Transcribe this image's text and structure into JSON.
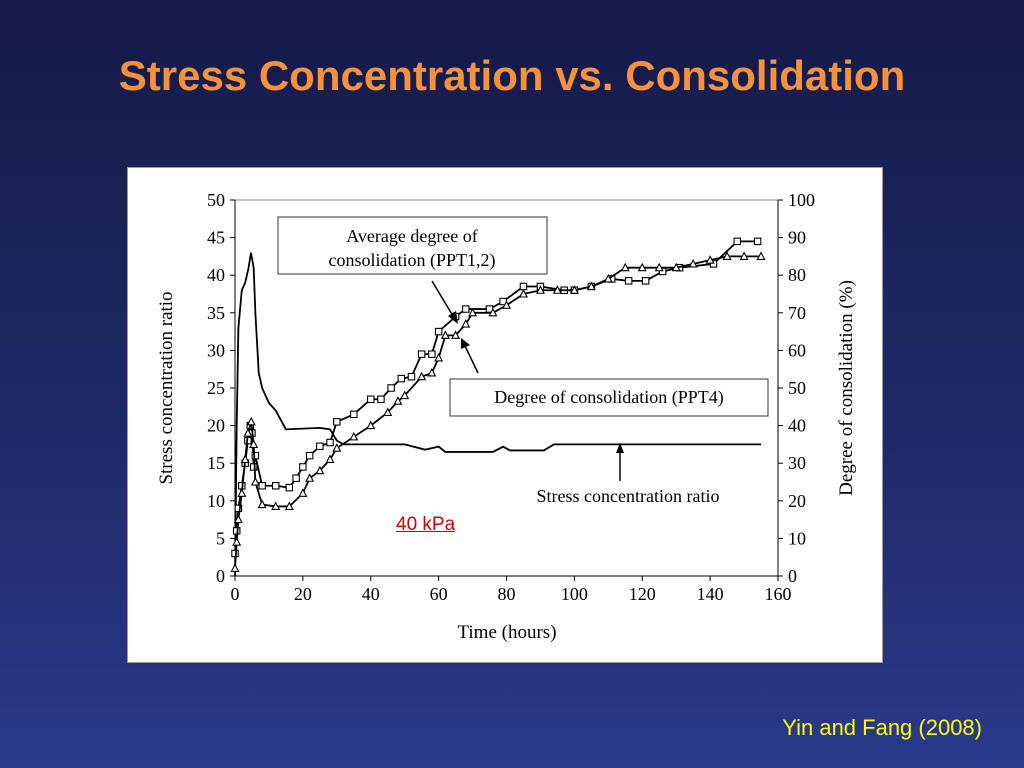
{
  "slide": {
    "title": "Stress Concentration vs. Consolidation",
    "citation": "Yin and Fang (2008)",
    "link_label": "40 kPa"
  },
  "colors": {
    "background": "#1e2a66",
    "title": "#f5923a",
    "citation": "#ffff00",
    "link": "#cc0000",
    "series": "#000000"
  },
  "chart_data": {
    "type": "line",
    "xlabel": "Time (hours)",
    "ylabel_left": "Stress concentration ratio",
    "ylabel_right": "Degree of consolidation (%)",
    "xlim": [
      0,
      160
    ],
    "ylim_left": [
      0,
      50
    ],
    "ylim_right": [
      0,
      100
    ],
    "x_ticks": [
      "0",
      "20",
      "40",
      "60",
      "80",
      "100",
      "120",
      "140",
      "160"
    ],
    "y_ticks_left": [
      "0",
      "5",
      "10",
      "15",
      "20",
      "25",
      "30",
      "35",
      "40",
      "45",
      "50"
    ],
    "y_ticks_right": [
      "0",
      "10",
      "20",
      "30",
      "40",
      "50",
      "60",
      "70",
      "80",
      "90",
      "100"
    ],
    "grid": false,
    "annotations": [
      {
        "text_lines": [
          "Average degree of",
          "consolidation  (PPT1,2)"
        ],
        "boxed": true
      },
      {
        "text_lines": [
          "Degree  of consolidation  (PPT4)"
        ],
        "boxed": true
      },
      {
        "text_lines": [
          "Stress  concentration  ratio"
        ],
        "boxed": false
      }
    ],
    "series": [
      {
        "axis": "left",
        "marker": "none",
        "points": [
          [
            0,
            0
          ],
          [
            0.5,
            20
          ],
          [
            1,
            33
          ],
          [
            2,
            38
          ],
          [
            3,
            39
          ],
          [
            4,
            41
          ],
          [
            4.7,
            43
          ],
          [
            5.5,
            41
          ],
          [
            6,
            35
          ],
          [
            7,
            27
          ],
          [
            8,
            25
          ],
          [
            9,
            24
          ],
          [
            10,
            23
          ],
          [
            12,
            22
          ],
          [
            15,
            19.5
          ],
          [
            20,
            19.6
          ],
          [
            25,
            19.7
          ],
          [
            28,
            19.5
          ],
          [
            30,
            18
          ],
          [
            32,
            17.5
          ],
          [
            50,
            17.5
          ],
          [
            56,
            16.8
          ],
          [
            60,
            17.2
          ],
          [
            62,
            16.5
          ],
          [
            76,
            16.5
          ],
          [
            79,
            17.2
          ],
          [
            81,
            16.7
          ],
          [
            91,
            16.7
          ],
          [
            94,
            17.5
          ],
          [
            155,
            17.5
          ]
        ]
      },
      {
        "axis": "right",
        "marker": "square",
        "points": [
          [
            0,
            6
          ],
          [
            0.5,
            12
          ],
          [
            1,
            18
          ],
          [
            2,
            24
          ],
          [
            3,
            30
          ],
          [
            3.8,
            36
          ],
          [
            4.5,
            40
          ],
          [
            5,
            38
          ],
          [
            5.5,
            29
          ],
          [
            6,
            32
          ],
          [
            8,
            24
          ],
          [
            12,
            24
          ],
          [
            16,
            23.5
          ],
          [
            18,
            26
          ],
          [
            20,
            29
          ],
          [
            22,
            32
          ],
          [
            25,
            34.5
          ],
          [
            28,
            35.5
          ],
          [
            30,
            41
          ],
          [
            35,
            43
          ],
          [
            40,
            47
          ],
          [
            43,
            47
          ],
          [
            46,
            50
          ],
          [
            49,
            52.5
          ],
          [
            52,
            53
          ],
          [
            55,
            59
          ],
          [
            58,
            59
          ],
          [
            60,
            65
          ],
          [
            65,
            69
          ],
          [
            68,
            71
          ],
          [
            75,
            71
          ],
          [
            79,
            73
          ],
          [
            85,
            77
          ],
          [
            90,
            77
          ],
          [
            97,
            76
          ],
          [
            100,
            76
          ],
          [
            105,
            77
          ],
          [
            111,
            79
          ],
          [
            116,
            78.5
          ],
          [
            121,
            78.5
          ],
          [
            126,
            81
          ],
          [
            131,
            82
          ],
          [
            141,
            83
          ],
          [
            148,
            89
          ],
          [
            154,
            89
          ]
        ]
      },
      {
        "axis": "right",
        "marker": "triangle",
        "points": [
          [
            0,
            2
          ],
          [
            0.5,
            9
          ],
          [
            1,
            15
          ],
          [
            2,
            22
          ],
          [
            3,
            31
          ],
          [
            3.8,
            38
          ],
          [
            4.8,
            41
          ],
          [
            5.5,
            35
          ],
          [
            6,
            25
          ],
          [
            8,
            19
          ],
          [
            12,
            18.5
          ],
          [
            16,
            18.5
          ],
          [
            20,
            22
          ],
          [
            22,
            26
          ],
          [
            25,
            28
          ],
          [
            28,
            31
          ],
          [
            30,
            34
          ],
          [
            35,
            37
          ],
          [
            40,
            40
          ],
          [
            45,
            43.5
          ],
          [
            48,
            46.5
          ],
          [
            50,
            48
          ],
          [
            55,
            53
          ],
          [
            58,
            54
          ],
          [
            60,
            58
          ],
          [
            62,
            64
          ],
          [
            65,
            64
          ],
          [
            68,
            67
          ],
          [
            70,
            70
          ],
          [
            76,
            70
          ],
          [
            80,
            72
          ],
          [
            85,
            75
          ],
          [
            90,
            76
          ],
          [
            95,
            76
          ],
          [
            100,
            76
          ],
          [
            105,
            77
          ],
          [
            110,
            79
          ],
          [
            115,
            82
          ],
          [
            120,
            82
          ],
          [
            125,
            82
          ],
          [
            130,
            82
          ],
          [
            135,
            83
          ],
          [
            140,
            84
          ],
          [
            145,
            85
          ],
          [
            150,
            85
          ],
          [
            155,
            85
          ]
        ]
      }
    ]
  }
}
